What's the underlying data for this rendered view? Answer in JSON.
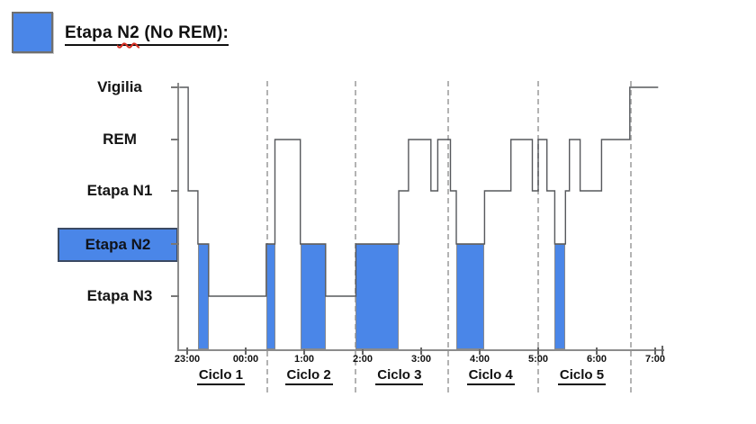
{
  "header": {
    "title_pre": "Etapa ",
    "title_word": "N2",
    "title_post": " (No REM):",
    "legend_color": "#4a86e8"
  },
  "chart_data": {
    "type": "line",
    "subtype": "hypnogram-step",
    "title": "Etapa N2 (No REM):",
    "stages": [
      "Vigilia",
      "REM",
      "Etapa N1",
      "Etapa N2",
      "Etapa N3"
    ],
    "highlighted_stage": "Etapa N2",
    "fill_color": "#4a86e8",
    "line_color": "#56585c",
    "x_tick_labels": [
      "23:00",
      "00:00",
      "1:00",
      "2:00",
      "3:00",
      "4:00",
      "5:00",
      "6:00",
      "7:00"
    ],
    "cycle_labels": [
      "Ciclo 1",
      "Ciclo 2",
      "Ciclo 3",
      "Ciclo 4",
      "Ciclo 5"
    ],
    "cycle_boundaries": [
      "00:22",
      "01:53",
      "03:28",
      "05:00",
      "06:35"
    ],
    "grid": "dashed vertical cycle dividers only",
    "legend_position": "top-left",
    "segments": [
      {
        "stage": "Vigilia",
        "start": "22:52",
        "end": "23:01"
      },
      {
        "stage": "Etapa N1",
        "start": "23:01",
        "end": "23:11"
      },
      {
        "stage": "Etapa N2",
        "start": "23:11",
        "end": "23:22"
      },
      {
        "stage": "Etapa N3",
        "start": "23:22",
        "end": "00:21"
      },
      {
        "stage": "Etapa N2",
        "start": "00:21",
        "end": "00:30"
      },
      {
        "stage": "REM",
        "start": "00:30",
        "end": "00:56"
      },
      {
        "stage": "Etapa N2",
        "start": "00:56",
        "end": "01:22"
      },
      {
        "stage": "Etapa N3",
        "start": "01:22",
        "end": "01:53"
      },
      {
        "stage": "Etapa N2",
        "start": "01:53",
        "end": "02:37"
      },
      {
        "stage": "Etapa N1",
        "start": "02:37",
        "end": "02:47"
      },
      {
        "stage": "REM",
        "start": "02:47",
        "end": "03:10"
      },
      {
        "stage": "Etapa N1",
        "start": "03:10",
        "end": "03:17"
      },
      {
        "stage": "REM",
        "start": "03:17",
        "end": "03:30"
      },
      {
        "stage": "Etapa N1",
        "start": "03:30",
        "end": "03:36"
      },
      {
        "stage": "Etapa N2",
        "start": "03:36",
        "end": "04:05"
      },
      {
        "stage": "Etapa N1",
        "start": "04:05",
        "end": "04:32"
      },
      {
        "stage": "REM",
        "start": "04:32",
        "end": "04:54"
      },
      {
        "stage": "Etapa N1",
        "start": "04:54",
        "end": "05:00"
      },
      {
        "stage": "REM",
        "start": "05:00",
        "end": "05:09"
      },
      {
        "stage": "Etapa N1",
        "start": "05:09",
        "end": "05:17"
      },
      {
        "stage": "Etapa N2",
        "start": "05:17",
        "end": "05:28"
      },
      {
        "stage": "Etapa N1",
        "start": "05:28",
        "end": "05:32"
      },
      {
        "stage": "REM",
        "start": "05:32",
        "end": "05:43"
      },
      {
        "stage": "Etapa N1",
        "start": "05:43",
        "end": "06:05"
      },
      {
        "stage": "REM",
        "start": "06:05",
        "end": "06:34"
      },
      {
        "stage": "Vigilia",
        "start": "06:34",
        "end": "07:03"
      }
    ]
  }
}
